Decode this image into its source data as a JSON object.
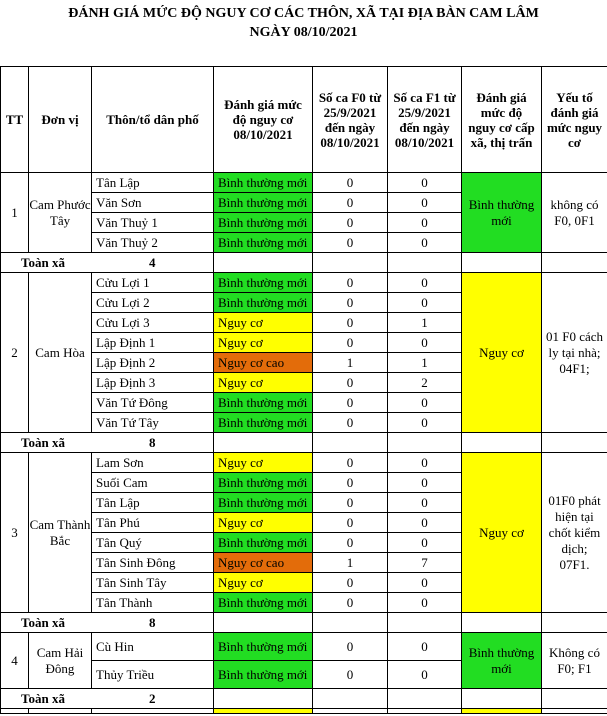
{
  "title_line1": "ĐÁNH GIÁ MỨC ĐỘ NGUY CƠ  CÁC THÔN, XÃ TẠI ĐỊA BÀN CAM LÂM",
  "title_line2": "NGÀY 08/10/2021",
  "headers": {
    "tt": "TT",
    "unit": "Đơn vị",
    "village": "Thôn/tổ dân phố",
    "risk": "Đánh giá mức độ nguy cơ 08/10/2021",
    "f0": "Số ca F0 từ 25/9/2021 đến ngày 08/10/2021",
    "f1": "Số ca F1 từ 25/9/2021 đến ngày 08/10/2021",
    "commune_risk": "Đánh giá mức độ nguy cơ cấp xã, thị trấn",
    "factors": "Yếu tố đánh giá mức nguy cơ"
  },
  "total_label": "Toàn xã",
  "colors": {
    "green": "#22dd22",
    "yellow": "#ffff00",
    "orange": "#e36c0a"
  },
  "communes": [
    {
      "tt": "1",
      "name": "Cam Phước Tây",
      "risk": "Bình thường mới",
      "risk_color": "green",
      "factors": "không có F0, 0F1",
      "total": "4",
      "villages": [
        {
          "name": "Tân Lập",
          "risk": "Bình thường mới",
          "color": "green",
          "f0": "0",
          "f1": "0"
        },
        {
          "name": "Văn Sơn",
          "risk": "Bình thường mới",
          "color": "green",
          "f0": "0",
          "f1": "0"
        },
        {
          "name": "Văn Thuỷ 1",
          "risk": "Bình thường mới",
          "color": "green",
          "f0": "0",
          "f1": "0"
        },
        {
          "name": "Văn Thuỷ 2",
          "risk": "Bình thường mới",
          "color": "green",
          "f0": "0",
          "f1": "0"
        }
      ]
    },
    {
      "tt": "2",
      "name": "Cam Hòa",
      "risk": "Nguy cơ",
      "risk_color": "yellow",
      "factors": "01 F0 cách ly tại nhà; 04F1;",
      "total": "8",
      "villages": [
        {
          "name": "Cửu Lợi 1",
          "risk": "Bình thường mới",
          "color": "green",
          "f0": "0",
          "f1": "0"
        },
        {
          "name": "Cửu Lợi 2",
          "risk": "Bình thường mới",
          "color": "green",
          "f0": "0",
          "f1": "0"
        },
        {
          "name": "Cửu Lợi 3",
          "risk": "Nguy cơ",
          "color": "yellow",
          "f0": "0",
          "f1": "1"
        },
        {
          "name": "Lập Định 1",
          "risk": "Nguy cơ",
          "color": "yellow",
          "f0": "0",
          "f1": "0"
        },
        {
          "name": "Lập Định 2",
          "risk": "Nguy cơ cao",
          "color": "orange",
          "f0": "1",
          "f1": "1"
        },
        {
          "name": "Lập Định 3",
          "risk": "Nguy cơ",
          "color": "yellow",
          "f0": "0",
          "f1": "2"
        },
        {
          "name": "Văn Tứ Đông",
          "risk": "Bình thường mới",
          "color": "green",
          "f0": "0",
          "f1": "0"
        },
        {
          "name": "Văn Tứ Tây",
          "risk": "Bình thường mới",
          "color": "green",
          "f0": "0",
          "f1": "0"
        }
      ]
    },
    {
      "tt": "3",
      "name": "Cam Thành Bắc",
      "risk": "Nguy cơ",
      "risk_color": "yellow",
      "factors": "01F0 phát hiện tại chốt kiểm dịch; 07F1.",
      "total": "8",
      "villages": [
        {
          "name": "Lam Sơn",
          "risk": "Nguy cơ",
          "color": "yellow",
          "f0": "0",
          "f1": "0"
        },
        {
          "name": "Suối Cam",
          "risk": "Bình thường mới",
          "color": "green",
          "f0": "0",
          "f1": "0"
        },
        {
          "name": "Tân Lập",
          "risk": "Bình thường mới",
          "color": "green",
          "f0": "0",
          "f1": "0"
        },
        {
          "name": "Tân Phú",
          "risk": "Nguy cơ",
          "color": "yellow",
          "f0": "0",
          "f1": "0"
        },
        {
          "name": "Tân Quý",
          "risk": "Bình thường mới",
          "color": "green",
          "f0": "0",
          "f1": "0"
        },
        {
          "name": "Tân Sinh Đông",
          "risk": "Nguy cơ cao",
          "color": "orange",
          "f0": "1",
          "f1": "7"
        },
        {
          "name": "Tân Sinh Tây",
          "risk": "Nguy cơ",
          "color": "yellow",
          "f0": "0",
          "f1": "0"
        },
        {
          "name": "Tân Thành",
          "risk": "Bình thường mới",
          "color": "green",
          "f0": "0",
          "f1": "0"
        }
      ]
    },
    {
      "tt": "4",
      "name": "Cam Hải Đông",
      "risk": "Bình thường mới",
      "risk_color": "green",
      "factors": "Không có F0; F1",
      "total": "2",
      "villages": [
        {
          "name": "Cù Hin",
          "risk": "Bình thường mới",
          "color": "green",
          "f0": "0",
          "f1": "0"
        },
        {
          "name": "Thủy Triều",
          "risk": "Bình thường mới",
          "color": "green",
          "f0": "0",
          "f1": "0"
        }
      ]
    }
  ]
}
